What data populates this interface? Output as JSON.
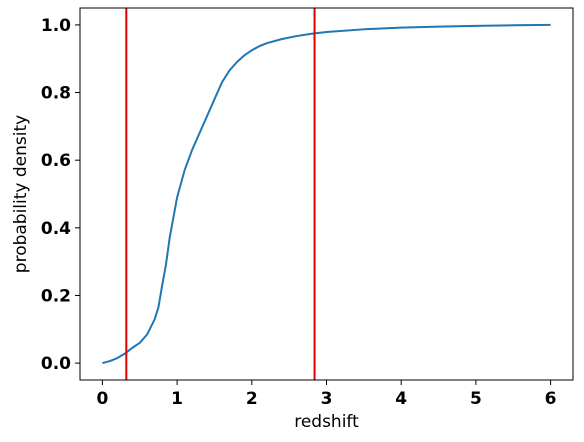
{
  "chart_data": {
    "type": "line",
    "title": "",
    "xlabel": "redshift",
    "ylabel": "probability density",
    "xlim": [
      -0.3,
      6.3
    ],
    "ylim": [
      -0.05,
      1.05
    ],
    "x_ticks": [
      0,
      1,
      2,
      3,
      4,
      5,
      6
    ],
    "y_ticks": [
      0.0,
      0.2,
      0.4,
      0.6,
      0.8,
      1.0
    ],
    "x_tick_labels": [
      "0",
      "1",
      "2",
      "3",
      "4",
      "5",
      "6"
    ],
    "y_tick_labels": [
      "0.0",
      "0.2",
      "0.4",
      "0.6",
      "0.8",
      "1.0"
    ],
    "grid": false,
    "series": [
      {
        "color": "#1f77b4",
        "x": [
          0.0,
          0.1,
          0.2,
          0.3,
          0.4,
          0.5,
          0.6,
          0.7,
          0.75,
          0.8,
          0.85,
          0.9,
          0.95,
          1.0,
          1.05,
          1.1,
          1.2,
          1.3,
          1.4,
          1.5,
          1.6,
          1.7,
          1.8,
          1.9,
          2.0,
          2.1,
          2.2,
          2.4,
          2.6,
          2.8,
          3.0,
          3.5,
          4.0,
          4.5,
          5.0,
          5.5,
          6.0
        ],
        "y": [
          0.0,
          0.006,
          0.015,
          0.028,
          0.045,
          0.06,
          0.085,
          0.13,
          0.165,
          0.23,
          0.29,
          0.37,
          0.43,
          0.49,
          0.53,
          0.57,
          0.63,
          0.68,
          0.73,
          0.78,
          0.83,
          0.865,
          0.89,
          0.91,
          0.925,
          0.937,
          0.946,
          0.958,
          0.967,
          0.974,
          0.979,
          0.987,
          0.992,
          0.995,
          0.997,
          0.999,
          1.0
        ]
      }
    ],
    "vlines": [
      {
        "x": 0.32,
        "color": "#e00000"
      },
      {
        "x": 2.84,
        "color": "#e00000"
      }
    ]
  }
}
